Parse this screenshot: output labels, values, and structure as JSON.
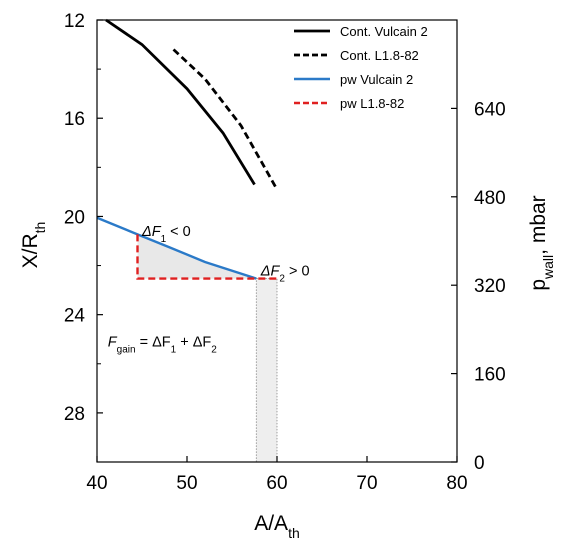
{
  "chart_data": {
    "type": "line",
    "x_axis": {
      "label_main": "A/A",
      "label_sub": "th",
      "range": [
        40,
        80
      ],
      "ticks": [
        "40",
        "50",
        "60",
        "70",
        "80"
      ]
    },
    "y_left_axis": {
      "label_main": "X/R",
      "label_sub": "th",
      "range": [
        12,
        30
      ],
      "inverted": true,
      "ticks": [
        "12",
        "16",
        "20",
        "24",
        "28"
      ],
      "minor_ticks": [
        14,
        18,
        22,
        26,
        30
      ]
    },
    "y_right_axis": {
      "label_main": "p",
      "label_sub": "wall",
      "label_tail": ", mbar",
      "range": [
        0,
        800
      ],
      "ticks": [
        "0",
        "160",
        "320",
        "480",
        "640"
      ]
    },
    "grid": false,
    "legend_placement": "top-right",
    "series": [
      {
        "name": "Cont. Vulcain 2",
        "axis": "left",
        "color": "#000000",
        "style": "solid",
        "points": [
          [
            41,
            12.0
          ],
          [
            45,
            13.0
          ],
          [
            50,
            14.8
          ],
          [
            54,
            16.6
          ],
          [
            57.5,
            18.7
          ]
        ]
      },
      {
        "name": "Cont. L1.8-82",
        "axis": "left",
        "color": "#000000",
        "style": "dashed",
        "points": [
          [
            48.5,
            13.2
          ],
          [
            52,
            14.4
          ],
          [
            56,
            16.3
          ],
          [
            60,
            18.9
          ]
        ]
      },
      {
        "name": "pw Vulcain 2",
        "axis": "right",
        "color": "#2b7ac8",
        "style": "solid",
        "points": [
          [
            40,
            442
          ],
          [
            44.5,
            412
          ],
          [
            48,
            389
          ],
          [
            52,
            362
          ],
          [
            57.7,
            332
          ]
        ]
      },
      {
        "name": "pw L1.8-82",
        "axis": "right",
        "color": "#e02020",
        "style": "dashed",
        "points": [
          [
            44.5,
            412
          ],
          [
            44.5,
            332
          ],
          [
            60,
            332
          ]
        ]
      }
    ],
    "annotations": {
      "delta_f1": {
        "main": "ΔF",
        "sub": "1",
        "tail": " < 0",
        "x": 45,
        "y": 20.8
      },
      "delta_f2": {
        "main": "ΔF",
        "sub": "2",
        "tail": " > 0",
        "x": 58.2,
        "y": 22.4
      },
      "gain": {
        "main": "F",
        "sub": "gain",
        "mid": " = ΔF",
        "sub1": "1",
        "mid2": " + ΔF",
        "sub2": "2",
        "x": 41.2,
        "y": 25.3
      }
    },
    "shaded_regions": {
      "gain_triangle_color": "#e8e8e8",
      "loss_band": {
        "x": [
          57.7,
          60
        ],
        "color": "#eeeeee"
      }
    }
  }
}
